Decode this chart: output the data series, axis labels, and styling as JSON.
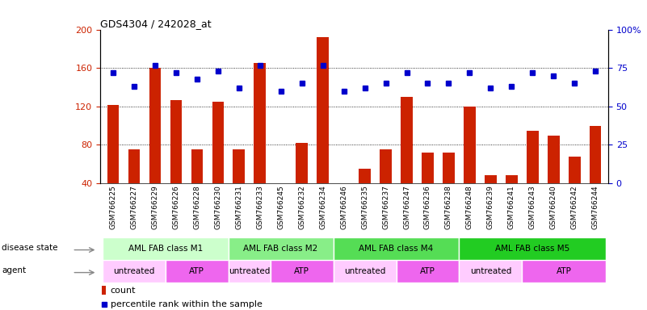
{
  "title": "GDS4304 / 242028_at",
  "samples": [
    "GSM766225",
    "GSM766227",
    "GSM766229",
    "GSM766226",
    "GSM766228",
    "GSM766230",
    "GSM766231",
    "GSM766233",
    "GSM766245",
    "GSM766232",
    "GSM766234",
    "GSM766246",
    "GSM766235",
    "GSM766237",
    "GSM766247",
    "GSM766236",
    "GSM766238",
    "GSM766248",
    "GSM766239",
    "GSM766241",
    "GSM766243",
    "GSM766240",
    "GSM766242",
    "GSM766244"
  ],
  "counts": [
    122,
    75,
    160,
    127,
    75,
    125,
    75,
    165,
    40,
    82,
    192,
    40,
    55,
    75,
    130,
    72,
    72,
    120,
    48,
    48,
    95,
    90,
    68,
    100
  ],
  "percentiles": [
    72,
    63,
    77,
    72,
    68,
    73,
    62,
    77,
    60,
    65,
    77,
    60,
    62,
    65,
    72,
    65,
    65,
    72,
    62,
    63,
    72,
    70,
    65,
    73
  ],
  "ylim_left": [
    40,
    200
  ],
  "ylim_right": [
    0,
    100
  ],
  "yticks_left": [
    40,
    80,
    120,
    160,
    200
  ],
  "yticks_right": [
    0,
    25,
    50,
    75,
    100
  ],
  "bar_color": "#cc2200",
  "dot_color": "#0000cc",
  "disease_states": [
    {
      "label": "AML FAB class M1",
      "start": 0,
      "end": 6,
      "color": "#ccffcc"
    },
    {
      "label": "AML FAB class M2",
      "start": 6,
      "end": 11,
      "color": "#88ee88"
    },
    {
      "label": "AML FAB class M4",
      "start": 11,
      "end": 17,
      "color": "#55dd55"
    },
    {
      "label": "AML FAB class M5",
      "start": 17,
      "end": 24,
      "color": "#22cc22"
    }
  ],
  "agents": [
    {
      "label": "untreated",
      "start": 0,
      "end": 3,
      "color": "#ffccff"
    },
    {
      "label": "ATP",
      "start": 3,
      "end": 6,
      "color": "#ee66ee"
    },
    {
      "label": "untreated",
      "start": 6,
      "end": 8,
      "color": "#ffccff"
    },
    {
      "label": "ATP",
      "start": 8,
      "end": 11,
      "color": "#ee66ee"
    },
    {
      "label": "untreated",
      "start": 11,
      "end": 14,
      "color": "#ffccff"
    },
    {
      "label": "ATP",
      "start": 14,
      "end": 17,
      "color": "#ee66ee"
    },
    {
      "label": "untreated",
      "start": 17,
      "end": 20,
      "color": "#ffccff"
    },
    {
      "label": "ATP",
      "start": 20,
      "end": 24,
      "color": "#ee66ee"
    }
  ],
  "label_disease_state": "disease state",
  "label_agent": "agent",
  "legend_count_color": "#cc2200",
  "legend_dot_color": "#0000cc",
  "fig_width": 8.01,
  "fig_height": 3.84,
  "dpi": 100
}
